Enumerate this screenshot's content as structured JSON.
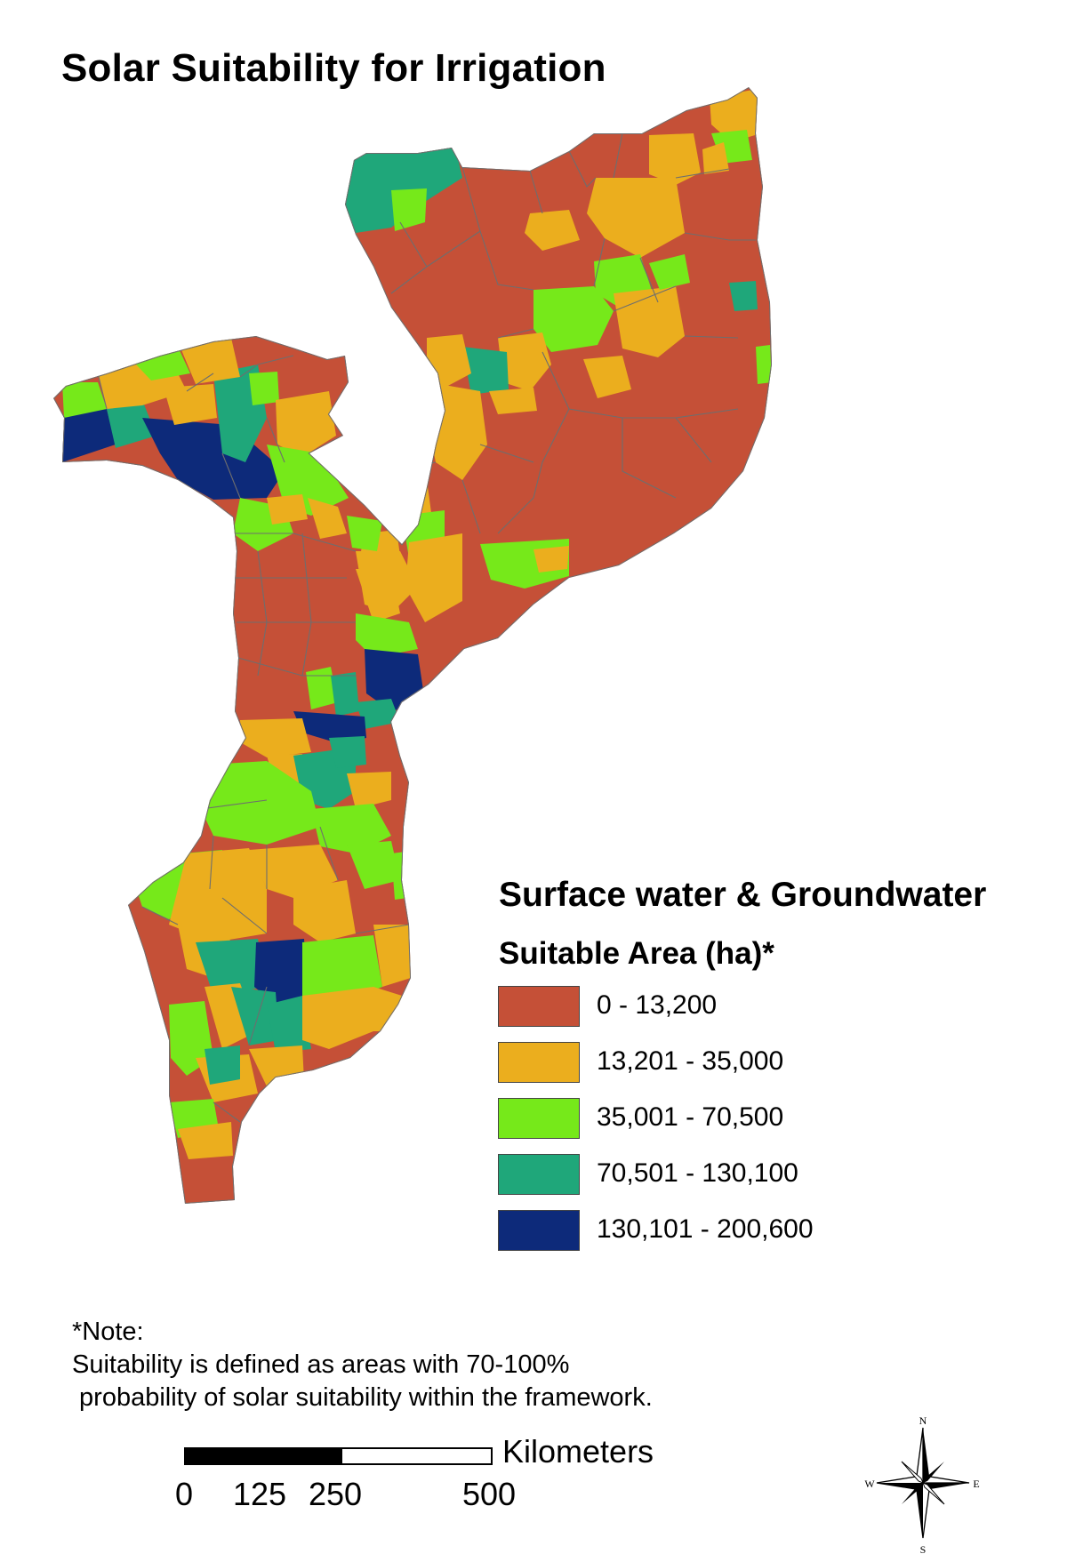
{
  "title": "Solar Suitability for Irrigation",
  "legend": {
    "title": "Surface water & Groundwater",
    "subtitle": "Suitable Area (ha)*",
    "classes": [
      {
        "label": "0 - 13,200",
        "color": "#C55037"
      },
      {
        "label": "13,201 - 35,000",
        "color": "#EBAE1E"
      },
      {
        "label": "35,001 - 70,500",
        "color": "#76E91A"
      },
      {
        "label": "70,501 - 130,100",
        "color": "#1FA77A"
      },
      {
        "label": "130,101 - 200,600",
        "color": "#0D2A7A"
      }
    ]
  },
  "note": {
    "heading": "*Note:",
    "line1": "Suitability is defined as areas with 70-100%",
    "line2": " probability of solar suitability within the framework."
  },
  "scale_bar": {
    "unit": "Kilometers",
    "ticks": [
      "0",
      "125",
      "250",
      "500"
    ]
  },
  "north_arrow": {
    "n": "N",
    "s": "S",
    "e": "E",
    "w": "W"
  },
  "colors": {
    "border": "#6E6E6E"
  }
}
